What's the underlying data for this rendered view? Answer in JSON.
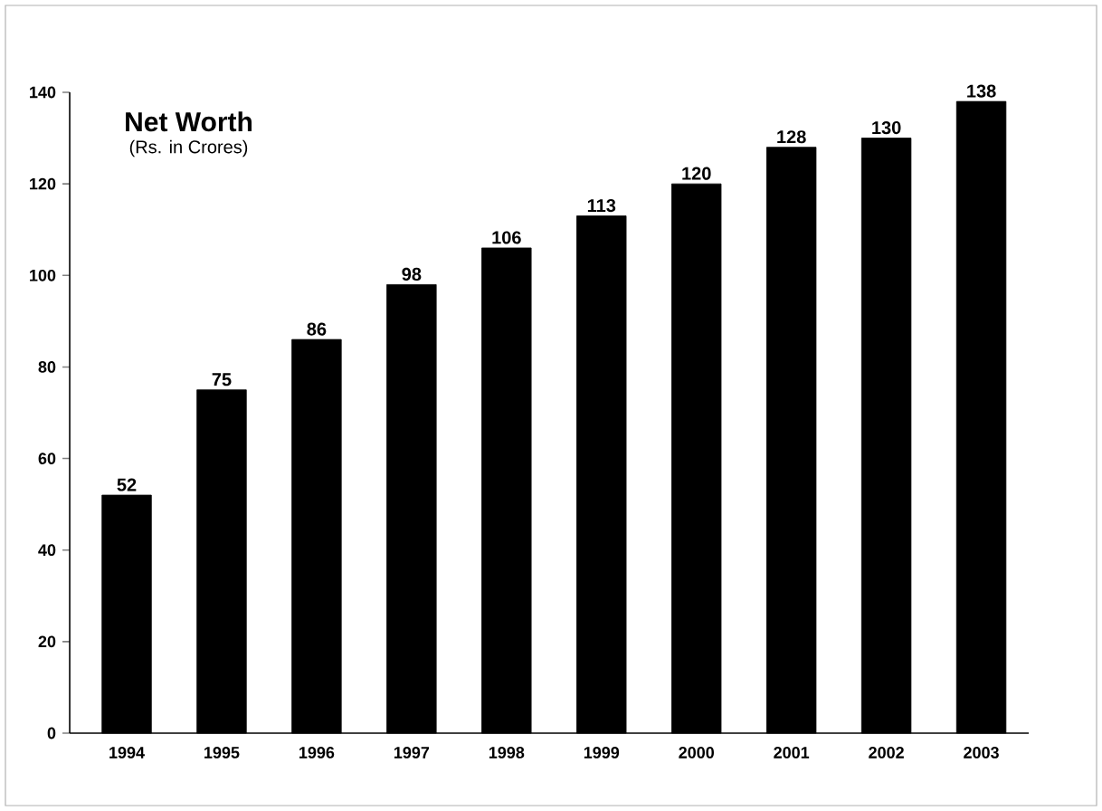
{
  "chart_data": {
    "type": "bar",
    "title": "Net Worth",
    "subtitle": "(Rs. in Crores)",
    "categories": [
      "1994",
      "1995",
      "1996",
      "1997",
      "1998",
      "1999",
      "2000",
      "2001",
      "2002",
      "2003"
    ],
    "values": [
      52,
      75,
      86,
      98,
      106,
      113,
      120,
      128,
      130,
      138
    ],
    "color": "#000000",
    "ylim": [
      0,
      140
    ],
    "yticks": [
      0,
      20,
      40,
      60,
      80,
      100,
      120,
      140
    ],
    "data_labels": true,
    "grid": false,
    "legend": false
  }
}
